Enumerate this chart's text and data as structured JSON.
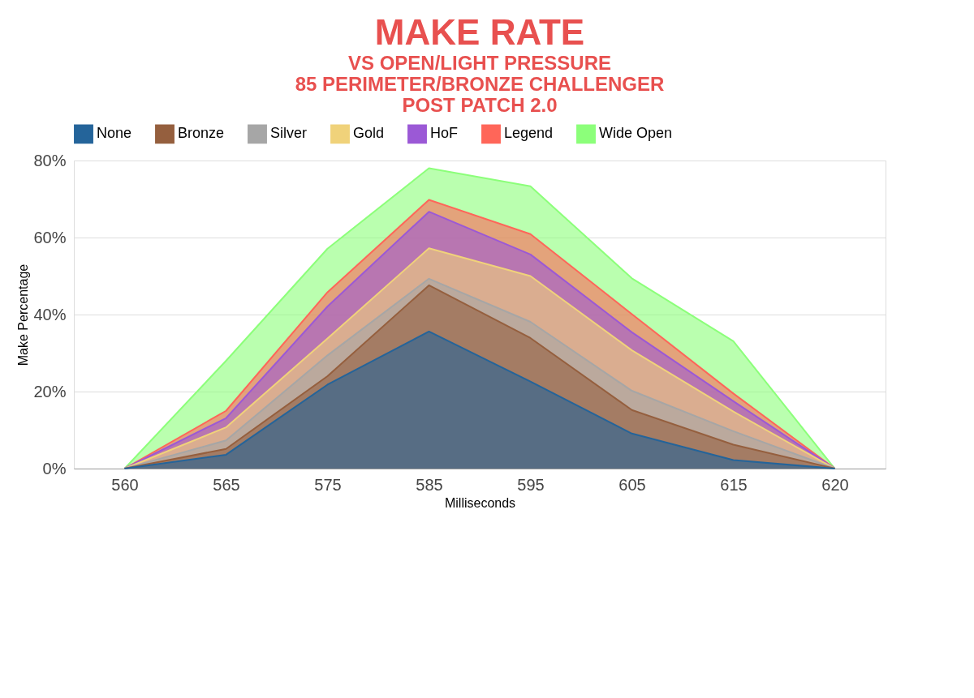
{
  "chart_data": {
    "type": "area",
    "title": "MAKE RATE",
    "subtitle": [
      "VS OPEN/LIGHT PRESSURE",
      "85 PERIMETER/BRONZE CHALLENGER",
      "POST PATCH 2.0"
    ],
    "xlabel": "Milliseconds",
    "ylabel": "Make Percentage",
    "categories": [
      "560",
      "565",
      "575",
      "585",
      "595",
      "605",
      "615",
      "620"
    ],
    "series": [
      {
        "name": "None",
        "color": "#24649a",
        "values": [
          0,
          3.6,
          21.8,
          35.6,
          22.6,
          9.1,
          2.2,
          0
        ]
      },
      {
        "name": "Bronze",
        "color": "#955f3e",
        "values": [
          0,
          5.1,
          24,
          47.6,
          33.9,
          15.2,
          6.2,
          0
        ]
      },
      {
        "name": "Silver",
        "color": "#a6a6a6",
        "values": [
          0,
          7.3,
          29.4,
          49.3,
          38.1,
          20.2,
          9.7,
          0
        ]
      },
      {
        "name": "Gold",
        "color": "#f0d27a",
        "values": [
          0,
          10.7,
          33.8,
          57.2,
          50,
          30.7,
          14.8,
          0
        ]
      },
      {
        "name": "HoF",
        "color": "#9b59d6",
        "values": [
          0,
          13.1,
          42.1,
          66.7,
          55.6,
          35.4,
          17.5,
          0
        ]
      },
      {
        "name": "Legend",
        "color": "#ff6659",
        "values": [
          0,
          15,
          45.8,
          69.8,
          60.9,
          40.1,
          19.5,
          0
        ]
      },
      {
        "name": "Wide Open",
        "color": "#8cff7a",
        "values": [
          0,
          28,
          57.1,
          78,
          73.3,
          49.4,
          33.1,
          0
        ]
      }
    ],
    "ylim": [
      0,
      80
    ],
    "yticks": [
      {
        "value": 0,
        "label": "0%"
      },
      {
        "value": 20,
        "label": "20%"
      },
      {
        "value": 40,
        "label": "40%"
      },
      {
        "value": 60,
        "label": "60%"
      },
      {
        "value": 80,
        "label": "80%"
      }
    ],
    "grid": "y",
    "legend": "top"
  }
}
